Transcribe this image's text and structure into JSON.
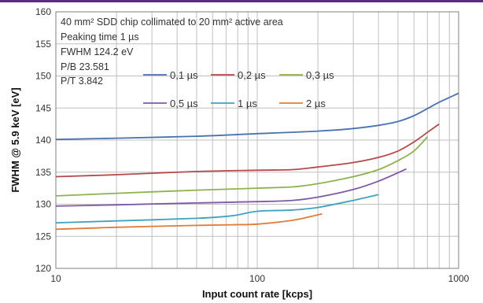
{
  "colors": {
    "top_bar": "#5c2a7e",
    "grid": "#bfbfbf",
    "axis": "#7f7f7f"
  },
  "chart_data": {
    "type": "line",
    "xlabel": "Input count rate [kcps]",
    "ylabel": "FWHM @ 5.9 keV [eV]",
    "x_scale": "log",
    "xlim": [
      10,
      1000
    ],
    "ylim": [
      120,
      160
    ],
    "x_ticks": [
      10,
      100,
      1000
    ],
    "x_tick_labels": [
      "10",
      "100",
      "1000"
    ],
    "y_ticks": [
      120,
      125,
      130,
      135,
      140,
      145,
      150,
      155,
      160
    ],
    "y_tick_labels": [
      "120",
      "125",
      "130",
      "135",
      "140",
      "145",
      "150",
      "155",
      "160"
    ],
    "grid": true,
    "annotations": [
      "40 mm² SDD chip collimated to 20 mm² active area",
      "Peaking time 1 µs",
      "FWHM 124.2 eV",
      "P/B 23.581",
      "P/T 3.842"
    ],
    "legend_position": "upper-middle",
    "series": [
      {
        "name": "0,1 µs",
        "color": "#4a72b0",
        "points": [
          [
            10,
            140.1
          ],
          [
            20,
            140.3
          ],
          [
            50,
            140.6
          ],
          [
            100,
            141.0
          ],
          [
            200,
            141.4
          ],
          [
            300,
            141.8
          ],
          [
            400,
            142.3
          ],
          [
            500,
            142.9
          ],
          [
            600,
            143.8
          ],
          [
            700,
            144.9
          ],
          [
            800,
            145.9
          ],
          [
            1000,
            147.3
          ]
        ]
      },
      {
        "name": "0,2 µs",
        "color": "#b54a4a",
        "points": [
          [
            10,
            134.3
          ],
          [
            20,
            134.6
          ],
          [
            50,
            135.1
          ],
          [
            100,
            135.3
          ],
          [
            150,
            135.4
          ],
          [
            200,
            135.8
          ],
          [
            300,
            136.5
          ],
          [
            400,
            137.3
          ],
          [
            500,
            138.3
          ],
          [
            600,
            139.7
          ],
          [
            700,
            141.2
          ],
          [
            800,
            142.5
          ]
        ]
      },
      {
        "name": "0,3 µs",
        "color": "#8db34e",
        "points": [
          [
            10,
            131.3
          ],
          [
            20,
            131.7
          ],
          [
            50,
            132.2
          ],
          [
            100,
            132.5
          ],
          [
            150,
            132.7
          ],
          [
            200,
            133.2
          ],
          [
            300,
            134.3
          ],
          [
            400,
            135.4
          ],
          [
            500,
            136.8
          ],
          [
            600,
            138.3
          ],
          [
            700,
            140.5
          ]
        ]
      },
      {
        "name": "0,5 µs",
        "color": "#7e5aa6",
        "points": [
          [
            10,
            129.7
          ],
          [
            20,
            129.9
          ],
          [
            50,
            130.2
          ],
          [
            100,
            130.4
          ],
          [
            150,
            130.6
          ],
          [
            200,
            131.1
          ],
          [
            300,
            132.3
          ],
          [
            400,
            133.6
          ],
          [
            550,
            135.5
          ]
        ]
      },
      {
        "name": "1 µs",
        "color": "#3fa3c0",
        "points": [
          [
            10,
            127.1
          ],
          [
            20,
            127.4
          ],
          [
            50,
            127.8
          ],
          [
            75,
            128.2
          ],
          [
            100,
            128.9
          ],
          [
            150,
            129.1
          ],
          [
            200,
            129.5
          ],
          [
            300,
            130.6
          ],
          [
            400,
            131.5
          ]
        ]
      },
      {
        "name": "2 µs",
        "color": "#e07b39",
        "points": [
          [
            10,
            126.1
          ],
          [
            20,
            126.4
          ],
          [
            50,
            126.7
          ],
          [
            75,
            126.8
          ],
          [
            100,
            126.9
          ],
          [
            150,
            127.5
          ],
          [
            210,
            128.5
          ]
        ]
      }
    ]
  }
}
